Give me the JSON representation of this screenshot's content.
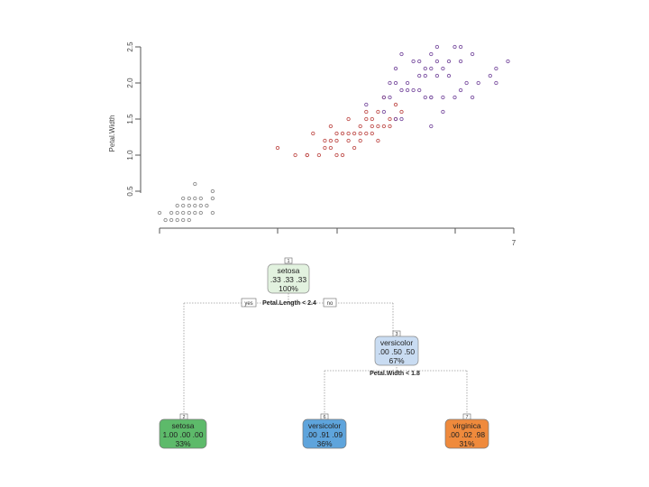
{
  "scatter": {
    "y_axis_title": "Petal.Width",
    "y_ticks": [
      "0.5",
      "1.0",
      "1.5",
      "2.0",
      "2.5"
    ],
    "x_ticks": [
      "",
      "",
      "",
      "",
      "7"
    ],
    "series_colors": {
      "setosa": "#8a8a8a",
      "versicolor": "#c0504d",
      "virginica": "#7a4fa0"
    }
  },
  "chart_data": {
    "type": "scatter",
    "xlabel": "",
    "ylabel": "Petal.Width",
    "xlim": [
      1,
      7
    ],
    "ylim": [
      0,
      2.6
    ],
    "grid": false,
    "series": [
      {
        "points": [
          [
            1.4,
            0.2
          ],
          [
            1.3,
            0.2
          ],
          [
            1.5,
            0.2
          ],
          [
            1.7,
            0.4
          ],
          [
            1.4,
            0.3
          ],
          [
            1.5,
            0.1
          ],
          [
            1.6,
            0.2
          ],
          [
            1.1,
            0.1
          ],
          [
            1.2,
            0.2
          ],
          [
            1.6,
            0.4
          ],
          [
            1.3,
            0.3
          ],
          [
            1.9,
            0.4
          ],
          [
            1.5,
            0.4
          ],
          [
            1.6,
            0.6
          ],
          [
            1.4,
            0.1
          ],
          [
            1.7,
            0.3
          ],
          [
            1.0,
            0.2
          ],
          [
            1.9,
            0.2
          ],
          [
            1.6,
            0.3
          ],
          [
            1.2,
            0.1
          ],
          [
            1.5,
            0.3
          ],
          [
            1.7,
            0.2
          ],
          [
            1.8,
            0.3
          ],
          [
            1.9,
            0.5
          ],
          [
            1.4,
            0.4
          ],
          [
            1.3,
            0.1
          ]
        ]
      },
      {
        "points": [
          [
            4.7,
            1.4
          ],
          [
            4.5,
            1.5
          ],
          [
            4.9,
            1.5
          ],
          [
            4.0,
            1.3
          ],
          [
            4.6,
            1.5
          ],
          [
            3.3,
            1.0
          ],
          [
            3.9,
            1.4
          ],
          [
            3.5,
            1.0
          ],
          [
            4.2,
            1.5
          ],
          [
            4.0,
            1.0
          ],
          [
            4.7,
            1.2
          ],
          [
            3.6,
            1.3
          ],
          [
            4.4,
            1.4
          ],
          [
            4.1,
            1.0
          ],
          [
            4.5,
            1.3
          ],
          [
            3.9,
            1.1
          ],
          [
            4.8,
            1.8
          ],
          [
            4.3,
            1.3
          ],
          [
            5.0,
            1.7
          ],
          [
            4.6,
            1.4
          ],
          [
            3.8,
            1.1
          ],
          [
            3.7,
            1.0
          ],
          [
            5.1,
            1.6
          ],
          [
            4.4,
            1.2
          ],
          [
            4.1,
            1.3
          ],
          [
            4.8,
            1.4
          ],
          [
            4.4,
            1.3
          ],
          [
            3.9,
            1.2
          ],
          [
            4.2,
            1.2
          ],
          [
            3.0,
            1.1
          ],
          [
            4.5,
            1.6
          ],
          [
            4.3,
            1.1
          ],
          [
            3.5,
            1.0
          ],
          [
            4.0,
            1.2
          ],
          [
            4.9,
            1.4
          ],
          [
            4.2,
            1.3
          ],
          [
            4.6,
            1.3
          ],
          [
            3.8,
            1.2
          ],
          [
            4.7,
            1.6
          ],
          [
            5.0,
            1.5
          ]
        ]
      },
      {
        "points": [
          [
            6.0,
            2.5
          ],
          [
            5.1,
            1.9
          ],
          [
            5.9,
            2.1
          ],
          [
            5.6,
            1.8
          ],
          [
            5.8,
            2.2
          ],
          [
            6.6,
            2.1
          ],
          [
            4.5,
            1.7
          ],
          [
            6.3,
            1.8
          ],
          [
            6.1,
            2.5
          ],
          [
            5.3,
            1.9
          ],
          [
            5.5,
            2.1
          ],
          [
            5.0,
            2.0
          ],
          [
            5.1,
            2.4
          ],
          [
            5.3,
            2.3
          ],
          [
            5.5,
            1.8
          ],
          [
            6.7,
            2.2
          ],
          [
            6.9,
            2.3
          ],
          [
            5.7,
            2.3
          ],
          [
            4.9,
            2.0
          ],
          [
            6.7,
            2.0
          ],
          [
            5.7,
            2.1
          ],
          [
            6.0,
            1.8
          ],
          [
            4.8,
            1.8
          ],
          [
            5.6,
            2.2
          ],
          [
            5.8,
            1.6
          ],
          [
            6.1,
            1.9
          ],
          [
            6.4,
            2.0
          ],
          [
            5.6,
            2.4
          ],
          [
            6.1,
            2.3
          ],
          [
            5.4,
            2.1
          ],
          [
            5.2,
            2.0
          ],
          [
            5.4,
            2.3
          ],
          [
            5.2,
            1.9
          ],
          [
            5.9,
            2.3
          ],
          [
            5.7,
            2.5
          ],
          [
            6.2,
            2.0
          ],
          [
            5.0,
            1.5
          ],
          [
            5.6,
            1.4
          ],
          [
            4.9,
            1.8
          ],
          [
            5.8,
            1.8
          ],
          [
            5.1,
            1.5
          ],
          [
            5.6,
            1.8
          ],
          [
            6.3,
            2.4
          ],
          [
            5.5,
            2.2
          ],
          [
            5.0,
            2.2
          ],
          [
            5.4,
            1.9
          ],
          [
            4.8,
            1.6
          ]
        ]
      }
    ]
  },
  "tree": {
    "root": {
      "badge": "1",
      "class": "setosa",
      "probs": ".33 .33 .33",
      "pct": "100%",
      "fill": "#e2f2df"
    },
    "split1": {
      "label": "Petal.Length < 2.4",
      "yes": "yes",
      "no": "no"
    },
    "node2": {
      "badge": "2",
      "class": "setosa",
      "probs": "1.00 .00 .00",
      "pct": "33%",
      "fill": "#5dba6a"
    },
    "node3": {
      "badge": "3",
      "class": "versicolor",
      "probs": ".00 .50 .50",
      "pct": "67%",
      "fill": "#c9dcf2"
    },
    "split2": {
      "label": "Petal.Width < 1.8"
    },
    "node6": {
      "badge": "6",
      "class": "versicolor",
      "probs": ".00 .91 .09",
      "pct": "36%",
      "fill": "#5ea4dc"
    },
    "node7": {
      "badge": "7",
      "class": "virginica",
      "probs": ".00 .02 .98",
      "pct": "31%",
      "fill": "#ef8a3c"
    }
  }
}
